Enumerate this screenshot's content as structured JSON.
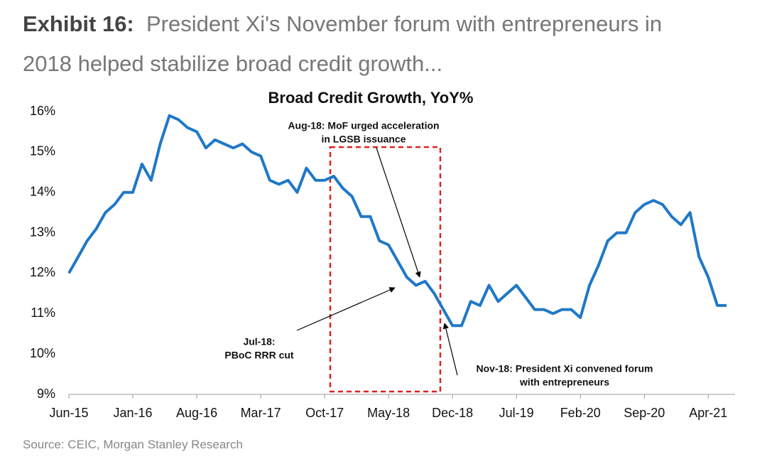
{
  "header": {
    "exhibit": "Exhibit 16:",
    "lines": [
      "President Xi's November forum with entrepreneurs in",
      "2018 helped stabilize broad credit growth..."
    ]
  },
  "source": "Source: CEIC, Morgan Stanley Research",
  "chart_data": {
    "type": "line",
    "title": "Broad Credit Growth, YoY%",
    "categories": [
      "Jun-15",
      null,
      null,
      null,
      null,
      null,
      null,
      "Jan-16",
      null,
      null,
      null,
      null,
      null,
      null,
      "Aug-16",
      null,
      null,
      null,
      null,
      null,
      null,
      "Mar-17",
      null,
      null,
      null,
      null,
      null,
      null,
      "Oct-17",
      null,
      null,
      null,
      null,
      null,
      null,
      "May-18",
      null,
      null,
      null,
      null,
      null,
      null,
      "Dec-18",
      null,
      null,
      null,
      null,
      null,
      null,
      "Jul-19",
      null,
      null,
      null,
      null,
      null,
      null,
      "Feb-20",
      null,
      null,
      null,
      null,
      null,
      null,
      "Sep-20",
      null,
      null,
      null,
      null,
      null,
      null,
      "Apr-21",
      null,
      null
    ],
    "series": [
      {
        "name": "Broad credit growth",
        "color": "#1f78c8",
        "values": [
          12.0,
          12.4,
          12.8,
          13.1,
          13.5,
          13.7,
          14.0,
          14.0,
          14.7,
          14.3,
          15.2,
          15.9,
          15.8,
          15.6,
          15.5,
          15.1,
          15.3,
          15.2,
          15.1,
          15.2,
          15.0,
          14.9,
          14.3,
          14.2,
          14.3,
          14.0,
          14.6,
          14.3,
          14.3,
          14.4,
          14.1,
          13.9,
          13.4,
          13.4,
          12.8,
          12.7,
          12.3,
          11.9,
          11.7,
          11.8,
          11.5,
          11.1,
          10.7,
          10.7,
          11.3,
          11.2,
          11.7,
          11.3,
          11.5,
          11.7,
          11.4,
          11.1,
          11.1,
          11.0,
          11.1,
          11.1,
          10.9,
          11.7,
          12.2,
          12.8,
          13.0,
          13.0,
          13.5,
          13.7,
          13.8,
          13.7,
          13.4,
          13.2,
          13.5,
          12.4,
          11.9,
          11.2,
          11.2
        ]
      }
    ],
    "ylim": [
      9,
      16
    ],
    "yticks": [
      {
        "value": 9,
        "label": "9%"
      },
      {
        "value": 10,
        "label": "10%"
      },
      {
        "value": 11,
        "label": "11%"
      },
      {
        "value": 12,
        "label": "12%"
      },
      {
        "value": 13,
        "label": "13%"
      },
      {
        "value": 14,
        "label": "14%"
      },
      {
        "value": 15,
        "label": "15%"
      },
      {
        "value": 16,
        "label": "16%"
      }
    ],
    "annotations": [
      {
        "lines": [
          "Aug-18: MoF urged acceleration",
          "in LGSB issuance"
        ]
      },
      {
        "lines": [
          "Jul-18:",
          "PBoC RRR cut"
        ]
      },
      {
        "lines": [
          "Nov-18: President Xi convened forum",
          "with entrepreneurs"
        ]
      }
    ]
  }
}
